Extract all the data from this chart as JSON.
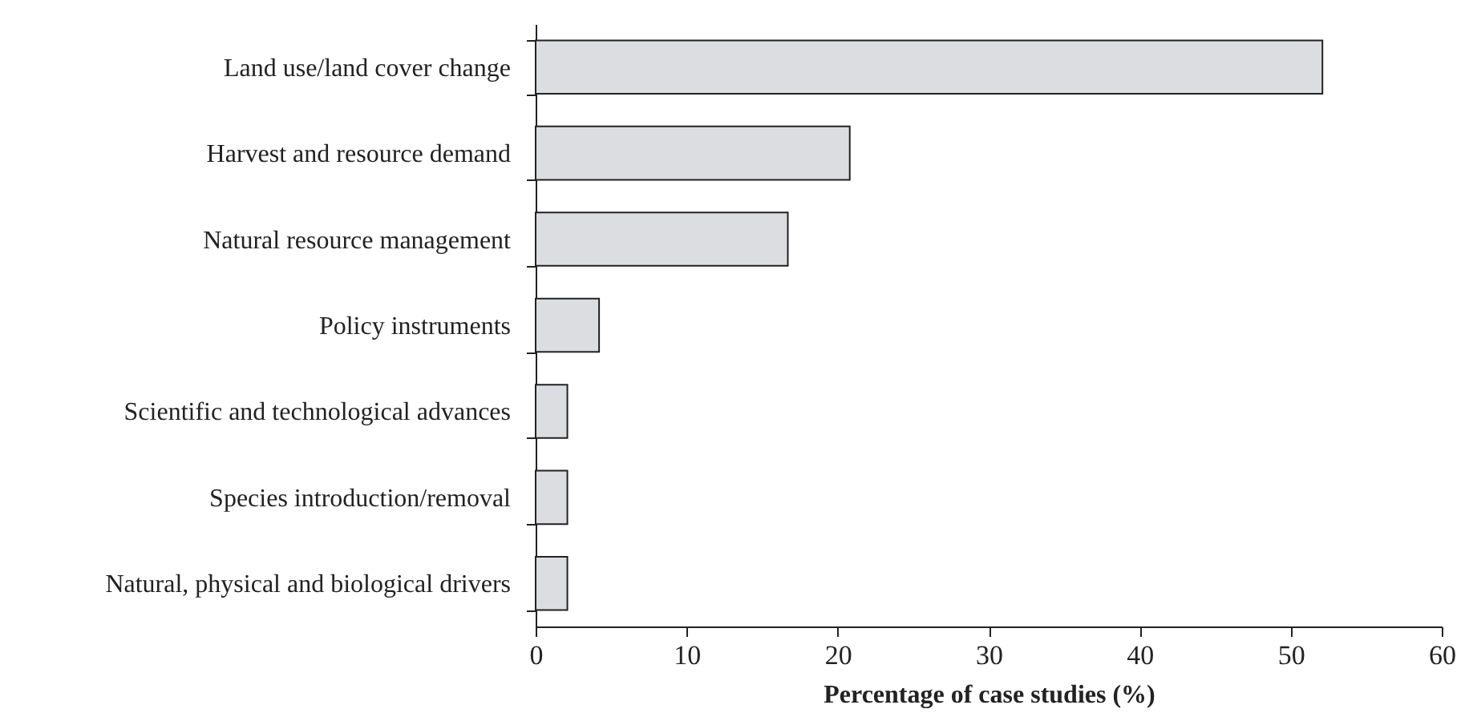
{
  "chart_data": {
    "type": "bar",
    "orientation": "horizontal",
    "xlabel": "Percentage of case studies (%)",
    "categories": [
      "Land use/land cover change",
      "Harvest and resource demand",
      "Natural resource management",
      "Policy instruments",
      "Scientific and technological advances",
      "Species introduction/removal",
      "Natural, physical and biological drivers"
    ],
    "values": [
      52.1,
      20.8,
      16.7,
      4.2,
      2.1,
      2.1,
      2.1
    ],
    "color": "#dcdde0",
    "xlim": [
      0,
      60
    ],
    "xticks": [
      0,
      10,
      20,
      30,
      40,
      50,
      60
    ],
    "grid": false
  }
}
